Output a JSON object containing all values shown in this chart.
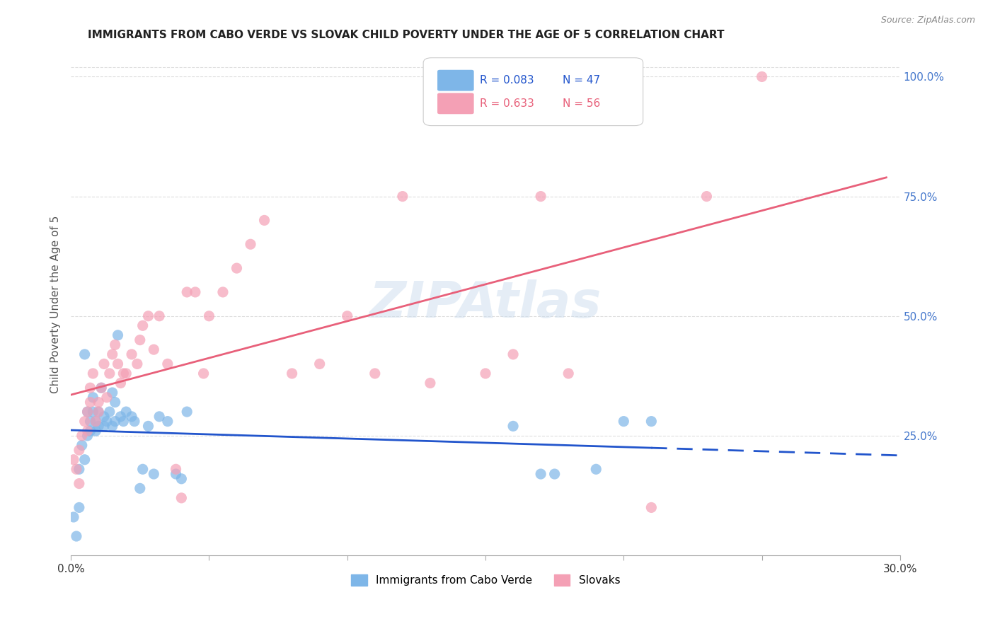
{
  "title": "IMMIGRANTS FROM CABO VERDE VS SLOVAK CHILD POVERTY UNDER THE AGE OF 5 CORRELATION CHART",
  "source": "Source: ZipAtlas.com",
  "ylabel": "Child Poverty Under the Age of 5",
  "xlim": [
    0.0,
    0.3
  ],
  "ylim": [
    0.0,
    1.05
  ],
  "xticks": [
    0.0,
    0.05,
    0.1,
    0.15,
    0.2,
    0.25,
    0.3
  ],
  "xticklabels": [
    "0.0%",
    "",
    "",
    "",
    "",
    "",
    "30.0%"
  ],
  "yticks_right": [
    0.25,
    0.5,
    0.75,
    1.0
  ],
  "ytick_labels_right": [
    "25.0%",
    "50.0%",
    "75.0%",
    "100.0%"
  ],
  "watermark": "ZIPAtlas",
  "blue_color": "#7EB6E8",
  "pink_color": "#F4A0B5",
  "blue_line_color": "#2255CC",
  "pink_line_color": "#E8607A",
  "legend_R_blue": "R = 0.083",
  "legend_N_blue": "N = 47",
  "legend_R_pink": "R = 0.633",
  "legend_N_pink": "N = 56",
  "blue_scatter_x": [
    0.001,
    0.002,
    0.003,
    0.003,
    0.004,
    0.005,
    0.005,
    0.006,
    0.006,
    0.007,
    0.007,
    0.008,
    0.008,
    0.009,
    0.009,
    0.01,
    0.01,
    0.011,
    0.012,
    0.012,
    0.013,
    0.014,
    0.015,
    0.015,
    0.016,
    0.016,
    0.017,
    0.018,
    0.019,
    0.02,
    0.022,
    0.023,
    0.025,
    0.026,
    0.028,
    0.03,
    0.032,
    0.035,
    0.038,
    0.04,
    0.042,
    0.16,
    0.17,
    0.175,
    0.19,
    0.2,
    0.21
  ],
  "blue_scatter_y": [
    0.08,
    0.04,
    0.18,
    0.1,
    0.23,
    0.42,
    0.2,
    0.3,
    0.25,
    0.28,
    0.26,
    0.33,
    0.3,
    0.28,
    0.26,
    0.27,
    0.3,
    0.35,
    0.27,
    0.29,
    0.28,
    0.3,
    0.27,
    0.34,
    0.32,
    0.28,
    0.46,
    0.29,
    0.28,
    0.3,
    0.29,
    0.28,
    0.14,
    0.18,
    0.27,
    0.17,
    0.29,
    0.28,
    0.17,
    0.16,
    0.3,
    0.27,
    0.17,
    0.17,
    0.18,
    0.28,
    0.28
  ],
  "pink_scatter_x": [
    0.001,
    0.002,
    0.003,
    0.003,
    0.004,
    0.005,
    0.006,
    0.006,
    0.007,
    0.007,
    0.008,
    0.009,
    0.01,
    0.01,
    0.011,
    0.012,
    0.013,
    0.014,
    0.015,
    0.016,
    0.017,
    0.018,
    0.019,
    0.02,
    0.022,
    0.024,
    0.025,
    0.026,
    0.028,
    0.03,
    0.032,
    0.035,
    0.038,
    0.04,
    0.042,
    0.045,
    0.048,
    0.05,
    0.055,
    0.06,
    0.065,
    0.07,
    0.08,
    0.09,
    0.1,
    0.11,
    0.12,
    0.13,
    0.14,
    0.15,
    0.16,
    0.17,
    0.18,
    0.21,
    0.23,
    0.25
  ],
  "pink_scatter_y": [
    0.2,
    0.18,
    0.22,
    0.15,
    0.25,
    0.28,
    0.3,
    0.26,
    0.32,
    0.35,
    0.38,
    0.28,
    0.3,
    0.32,
    0.35,
    0.4,
    0.33,
    0.38,
    0.42,
    0.44,
    0.4,
    0.36,
    0.38,
    0.38,
    0.42,
    0.4,
    0.45,
    0.48,
    0.5,
    0.43,
    0.5,
    0.4,
    0.18,
    0.12,
    0.55,
    0.55,
    0.38,
    0.5,
    0.55,
    0.6,
    0.65,
    0.7,
    0.38,
    0.4,
    0.5,
    0.38,
    0.75,
    0.36,
    1.0,
    0.38,
    0.42,
    0.75,
    0.38,
    0.1,
    0.75,
    1.0
  ],
  "background_color": "#FFFFFF",
  "grid_color": "#DDDDDD",
  "title_fontsize": 11,
  "axis_label_color": "#555555",
  "right_tick_color": "#4477CC",
  "bottom_tick_color": "#333333"
}
